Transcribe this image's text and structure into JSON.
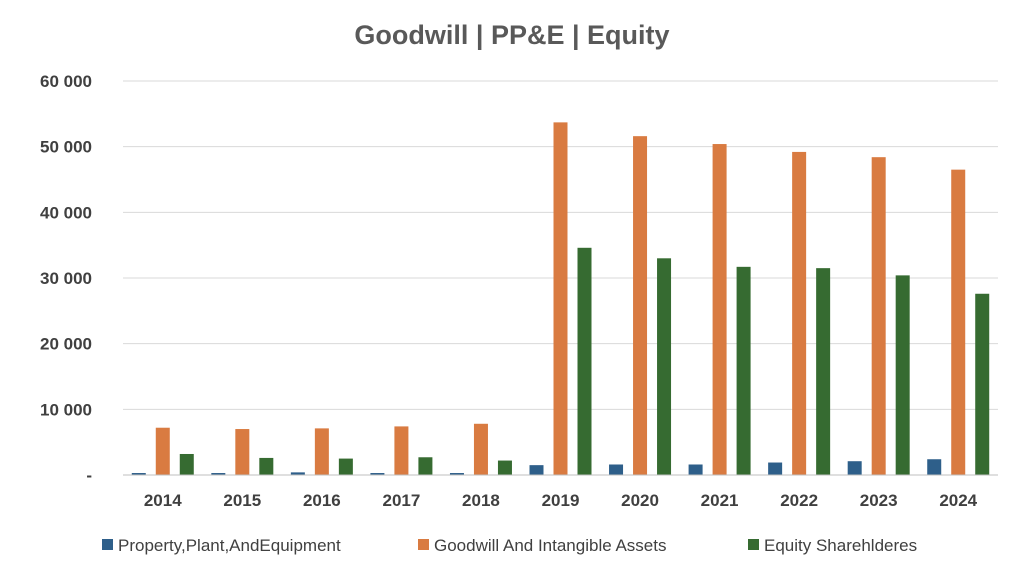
{
  "chart_data": {
    "type": "bar",
    "title": "Goodwill | PP&E | Equity",
    "categories": [
      "2014",
      "2015",
      "2016",
      "2017",
      "2018",
      "2019",
      "2020",
      "2021",
      "2022",
      "2023",
      "2024"
    ],
    "series": [
      {
        "name": "Property,Plant,AndEquipment",
        "color": "#2e5f8a",
        "values": [
          300,
          300,
          400,
          300,
          300,
          1500,
          1600,
          1600,
          1900,
          2100,
          2400
        ]
      },
      {
        "name": "Goodwill And Intangible Assets",
        "color": "#d97b41",
        "values": [
          7200,
          7000,
          7100,
          7400,
          7800,
          53700,
          51600,
          50400,
          49200,
          48400,
          46500
        ]
      },
      {
        "name": "Equity Sharehlderes",
        "color": "#366b31",
        "values": [
          3200,
          2600,
          2500,
          2700,
          2200,
          34600,
          33000,
          31700,
          31500,
          30400,
          27600
        ]
      }
    ],
    "ylim": [
      0,
      60000
    ],
    "yticks": [
      0,
      10000,
      20000,
      30000,
      40000,
      50000,
      60000
    ],
    "ytick_labels": [
      "-",
      "10 000",
      "20 000",
      "30 000",
      "40 000",
      "50 000",
      "60 000"
    ],
    "xlabel": "",
    "ylabel": "",
    "grid": true,
    "legend_position": "bottom"
  }
}
